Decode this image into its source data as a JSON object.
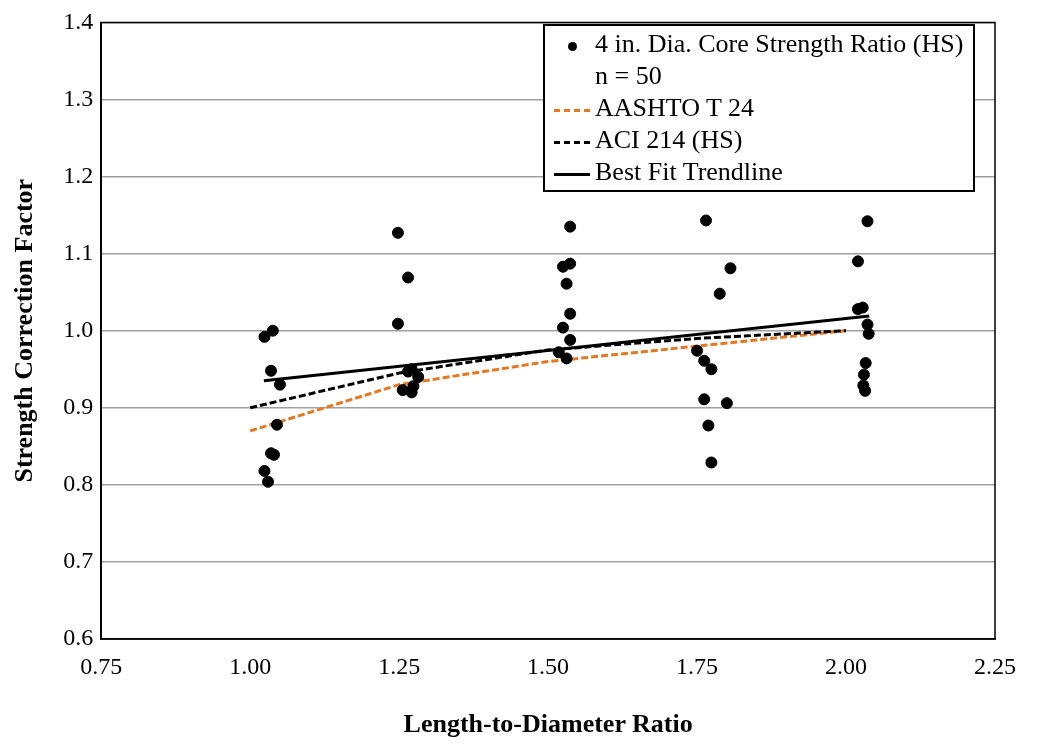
{
  "chart_data": {
    "type": "scatter",
    "xlabel": "Length-to-Diameter Ratio",
    "ylabel": "Strength Correction Factor",
    "xlim": [
      0.75,
      2.25
    ],
    "xticks": [
      {
        "value": 0.75,
        "label": "0.75"
      },
      {
        "value": 1,
        "label": "1.00"
      },
      {
        "value": 1.25,
        "label": "1.25"
      },
      {
        "value": 1.5,
        "label": "1.50"
      },
      {
        "value": 1.75,
        "label": "1.75"
      },
      {
        "value": 2,
        "label": "2.00"
      },
      {
        "value": 2.25,
        "label": "2.25"
      }
    ],
    "ylim": [
      0.6,
      1.4
    ],
    "yticks": [
      {
        "value": 0.6,
        "label": "0.6"
      },
      {
        "value": 0.7,
        "label": "0.7"
      },
      {
        "value": 0.8,
        "label": "0.8"
      },
      {
        "value": 0.9,
        "label": "0.9"
      },
      {
        "value": 1,
        "label": "1.0"
      },
      {
        "value": 1.1,
        "label": "1.1"
      },
      {
        "value": 1.2,
        "label": "1.2"
      },
      {
        "value": 1.3,
        "label": "1.3"
      },
      {
        "value": 1.4,
        "label": "1.4"
      }
    ],
    "grid": "y",
    "legend": "top right",
    "annotations": [
      "n = 50"
    ],
    "series": [
      {
        "name": "4 in. Dia. Core Strength Ratio (HS)",
        "type": "scatter",
        "marker": "circle",
        "color": "#000000",
        "x": [
          1.024,
          1.038,
          1.035,
          1.05,
          1.045,
          1.035,
          1.04,
          1.024,
          1.03,
          1.248,
          1.265,
          1.248,
          1.265,
          1.271,
          1.282,
          1.256,
          1.271,
          1.274,
          1.537,
          1.525,
          1.537,
          1.531,
          1.537,
          1.525,
          1.537,
          1.518,
          1.531,
          1.765,
          1.806,
          1.788,
          1.75,
          1.762,
          1.774,
          1.762,
          1.8,
          1.769,
          1.774,
          2.036,
          2.02,
          2.02,
          2.028,
          2.036,
          2.038,
          2.033,
          2.03,
          2.029,
          2.032
        ],
        "values": [
          0.992,
          1.0,
          0.948,
          0.93,
          0.878,
          0.841,
          0.839,
          0.818,
          0.804,
          1.127,
          1.069,
          1.009,
          0.947,
          0.95,
          0.94,
          0.923,
          0.92,
          0.928,
          1.135,
          1.083,
          1.087,
          1.061,
          1.022,
          1.004,
          0.988,
          0.972,
          0.964,
          1.143,
          1.081,
          1.048,
          0.974,
          0.961,
          0.95,
          0.911,
          0.906,
          0.877,
          0.829,
          1.142,
          1.09,
          1.028,
          1.03,
          1.008,
          0.996,
          0.958,
          0.943,
          0.929,
          0.922
        ]
      },
      {
        "name": "AASHTO T 24",
        "type": "line",
        "marker": "none",
        "line_style": "dashed",
        "color": "#e87722",
        "x": [
          1.0,
          1.25,
          1.5,
          1.75,
          2.0
        ],
        "values": [
          0.87,
          0.93,
          0.96,
          0.98,
          1.0
        ]
      },
      {
        "name": "ACI 214 (HS)",
        "type": "line",
        "marker": "none",
        "line_style": "dashed",
        "color": "#000000",
        "x": [
          1.0,
          1.25,
          1.5,
          1.75,
          2.0
        ],
        "values": [
          0.9,
          0.945,
          0.975,
          0.99,
          1.0
        ]
      },
      {
        "name": "Best Fit Trendline",
        "type": "line",
        "marker": "none",
        "line_style": "solid",
        "color": "#000000",
        "x": [
          1.023,
          2.039
        ],
        "values": [
          0.935,
          1.019
        ]
      }
    ]
  }
}
